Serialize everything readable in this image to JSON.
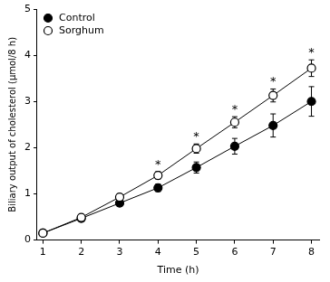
{
  "chart_data": {
    "type": "line",
    "x_label": "Time (h)",
    "y_label": "Biliary output of cholesterol (μmol/8 h)",
    "x": [
      1,
      2,
      3,
      4,
      5,
      6,
      7,
      8
    ],
    "series": [
      {
        "name": "Control",
        "color": "#000000",
        "marker": "circle",
        "line_style": "solid",
        "values": [
          0.15,
          0.47,
          0.8,
          1.13,
          1.57,
          2.03,
          2.48,
          3.0
        ],
        "errors": [
          0.03,
          0.05,
          0.07,
          0.08,
          0.12,
          0.17,
          0.25,
          0.32
        ]
      },
      {
        "name": "Sorghum",
        "color": "#000000",
        "marker": "open_circle",
        "line_style": "solid",
        "values": [
          0.15,
          0.49,
          0.93,
          1.4,
          1.98,
          2.55,
          3.13,
          3.72
        ],
        "errors": [
          0.03,
          0.05,
          0.07,
          0.08,
          0.1,
          0.12,
          0.14,
          0.18
        ]
      }
    ],
    "annotations": [
      {
        "x": 4,
        "text": "*"
      },
      {
        "x": 5,
        "text": "*"
      },
      {
        "x": 6,
        "text": "*"
      },
      {
        "x": 7,
        "text": "*"
      },
      {
        "x": 8,
        "text": "*"
      }
    ],
    "xlim": [
      0.85,
      8.2
    ],
    "xticks": [
      1,
      2,
      3,
      4,
      5,
      6,
      7,
      8
    ],
    "ylim": [
      0,
      5
    ],
    "yticks": [
      0,
      1,
      2,
      3,
      4,
      5
    ],
    "grid": false,
    "legend": "upper left"
  }
}
